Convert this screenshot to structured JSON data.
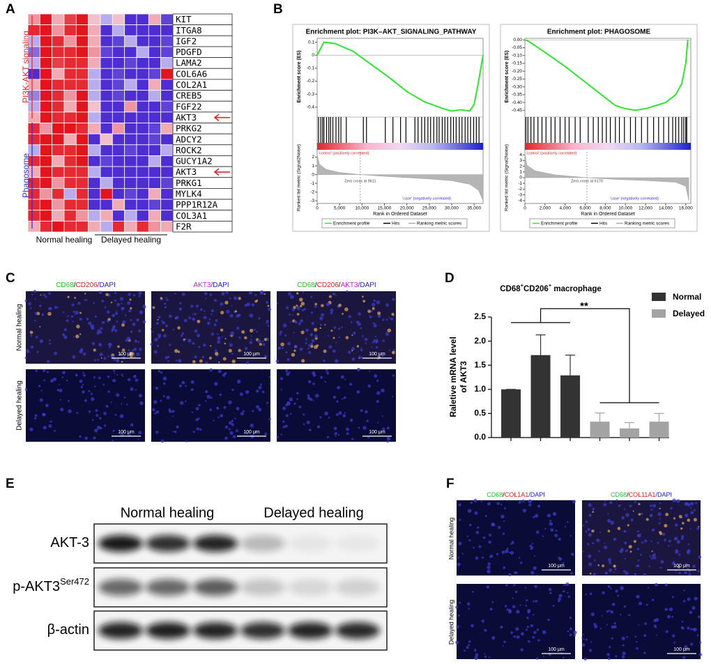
{
  "A": {
    "label": "A",
    "groups": [
      {
        "name": "PI3K-AKT signaling",
        "color": "#e0262b"
      },
      {
        "name": "Phagosome",
        "color": "#2b2bd6"
      }
    ],
    "genes": [
      "KIT",
      "ITGA8",
      "IGF2",
      "PDGFD",
      "LAMA2",
      "COL6A6",
      "COL2A1",
      "CREB5",
      "FGF22",
      "AKT3",
      "PRKG2",
      "ADCY2",
      "ROCK2",
      "GUCY1A2",
      "AKT3",
      "PRKG1",
      "MYLK4",
      "PPP1R12A",
      "COL3A1",
      "F2R"
    ],
    "conditions": [
      "Normal healing",
      "Delayed healing"
    ],
    "heatmap": [
      [
        0.4,
        1,
        0.3,
        0.8,
        1,
        0.2,
        -0.3,
        0.2,
        -0.9,
        -0.9,
        0.3,
        -0.8
      ],
      [
        0.9,
        1,
        0.4,
        0.9,
        1,
        0.3,
        -0.9,
        -0.3,
        -0.9,
        -0.9,
        -0.9,
        -0.9
      ],
      [
        -0.3,
        1,
        0.9,
        0.4,
        1,
        0.3,
        -0.9,
        -0.8,
        -0.3,
        -0.9,
        -0.9,
        -0.8
      ],
      [
        -0.6,
        1,
        0.9,
        0.9,
        1,
        0.4,
        -0.8,
        -0.9,
        -0.9,
        -0.3,
        -0.9,
        -0.8
      ],
      [
        -0.3,
        1,
        0.8,
        0.9,
        0.9,
        0.3,
        -0.9,
        -0.9,
        -0.8,
        -0.9,
        -0.9,
        -0.3
      ],
      [
        -0.9,
        1,
        0.3,
        0.9,
        0.9,
        -0.3,
        -0.9,
        -0.8,
        -0.9,
        -0.9,
        -0.8,
        1
      ],
      [
        0.3,
        1,
        0.9,
        0.9,
        0.9,
        -0.3,
        -0.9,
        -0.8,
        -0.3,
        -0.9,
        0.3,
        -0.9
      ],
      [
        -0.5,
        1,
        0.9,
        0.4,
        1,
        -0.3,
        -0.9,
        -0.8,
        -0.9,
        -0.9,
        -0.3,
        -0.9
      ],
      [
        -0.3,
        1,
        0.9,
        0.3,
        1,
        0.2,
        -0.9,
        -0.9,
        0.4,
        -0.9,
        -0.9,
        -0.8
      ],
      [
        0.3,
        1,
        0.9,
        0.9,
        1,
        -0.3,
        -0.9,
        -0.9,
        -0.9,
        -0.9,
        -0.9,
        -0.9
      ],
      [
        0.9,
        0.4,
        1,
        1,
        0.9,
        0.3,
        -0.9,
        0.4,
        -0.9,
        -0.9,
        -0.8,
        0.3
      ],
      [
        0.9,
        1,
        1,
        0.3,
        1,
        -0.9,
        0.2,
        -0.9,
        -0.9,
        -0.9,
        -0.8,
        -0.9
      ],
      [
        -0.3,
        1,
        0.9,
        0.9,
        1,
        -0.3,
        -0.9,
        -0.9,
        -0.8,
        -0.9,
        -0.9,
        -0.3
      ],
      [
        0.9,
        1,
        0.3,
        0.9,
        1,
        -0.9,
        -0.8,
        -0.9,
        -0.9,
        -0.9,
        -0.3,
        -0.9
      ],
      [
        0.3,
        1,
        0.9,
        0.9,
        0.9,
        -0.3,
        -0.9,
        -0.9,
        -0.9,
        -0.9,
        -0.9,
        -0.9
      ],
      [
        0.9,
        1,
        0.4,
        0.9,
        0.9,
        -0.9,
        -0.3,
        -0.9,
        -0.9,
        -0.9,
        -0.9,
        -0.8
      ],
      [
        0.9,
        0.4,
        0.9,
        -0.3,
        0.9,
        -0.9,
        1,
        -0.9,
        -0.8,
        -0.9,
        0.3,
        -0.9
      ],
      [
        0.9,
        1,
        0.4,
        0.9,
        0.9,
        -0.9,
        -0.9,
        0.3,
        -0.9,
        -0.9,
        -0.8,
        -0.9
      ],
      [
        0.9,
        1,
        0.3,
        0.9,
        0.4,
        -0.3,
        0.3,
        -0.9,
        -0.3,
        -0.9,
        0.3,
        -0.9
      ],
      [
        0.3,
        0.9,
        1,
        0.9,
        0.9,
        0.3,
        -0.3,
        0.9,
        0.3,
        0.9,
        0.4,
        0.3
      ]
    ]
  },
  "B": {
    "label": "B",
    "legend": [
      "Enrichment profile",
      "Hits",
      "Ranking metric scores"
    ],
    "plots": [
      {
        "title": "Enrichment plot: PI3K–AKT_SIGNALING_PATHWAY",
        "es_label": "Enrichment score (ES)",
        "rank_label": "Ranked list metric (Signal2Noise)",
        "x_label": "Rank in Ordered Dataset",
        "control_label": "'control' (positively correlated)",
        "case_label": "'case' (negatively correlated)",
        "zero_cross": 9611,
        "zero_cross_label": "Zero cross at 9611",
        "xlim": [
          0,
          37000
        ],
        "xticks": [
          0,
          {
            "value": 5000,
            "label": "5,000"
          },
          {
            "value": 10000,
            "label": "10,000"
          },
          {
            "value": 15000,
            "label": "15,000"
          },
          {
            "value": 20000,
            "label": "20,000"
          },
          {
            "value": 25000,
            "label": "25,000"
          },
          {
            "value": 30000,
            "label": "30,000"
          },
          {
            "value": 35000,
            "label": "35,000"
          }
        ],
        "ylim": [
          -0.46,
          0.13
        ],
        "yticks": [
          0.1,
          0,
          -0.1,
          -0.2,
          -0.3,
          -0.4
        ],
        "es_x": [
          0,
          1500,
          4000,
          8000,
          12000,
          16000,
          20000,
          24000,
          28000,
          30000,
          32000,
          34000,
          35000,
          36000,
          36600,
          37000
        ],
        "es": [
          0,
          0.1,
          0.09,
          0.03,
          -0.07,
          -0.17,
          -0.28,
          -0.36,
          -0.41,
          -0.43,
          -0.42,
          -0.43,
          -0.38,
          -0.2,
          -0.08,
          0
        ],
        "hits": [
          300,
          800,
          1200,
          1500,
          2100,
          2600,
          3000,
          3500,
          4200,
          4800,
          5300,
          6500,
          10300,
          11000,
          15200,
          16900,
          18600,
          19800,
          21800,
          22500,
          23300,
          24000,
          24700,
          25300,
          26000,
          26700,
          27200,
          27900,
          28500,
          29100,
          29800,
          30400,
          31000,
          31700,
          32300,
          33000,
          33600,
          34200,
          34900,
          35500,
          36100
        ],
        "rank_ylim": [
          -3.3,
          2.6
        ],
        "rank_yticks": [
          2,
          1,
          0,
          -1,
          -2,
          -3
        ],
        "rank_x": [
          0,
          500,
          2000,
          5000,
          9611,
          15000,
          20000,
          25000,
          30000,
          34000,
          36000,
          37000
        ],
        "rank": [
          2.3,
          1.2,
          0.6,
          0.25,
          0,
          -0.2,
          -0.35,
          -0.5,
          -0.7,
          -1.1,
          -1.8,
          -3
        ]
      },
      {
        "title": "Enrichment plot: PHAGOSOME",
        "es_label": "Enrichment score (ES)",
        "rank_label": "Ranked list metric (Signal2Noise)",
        "x_label": "Rank in Ordered Dataset",
        "control_label": "'control' (positively correlated)",
        "case_label": "'case' (negatively correlated)",
        "zero_cross": 6170,
        "zero_cross_label": "Zero cross at 6170",
        "xlim": [
          0,
          16500
        ],
        "xticks": [
          0,
          {
            "value": 2000,
            "label": "2,000"
          },
          {
            "value": 4000,
            "label": "4,000"
          },
          {
            "value": 6000,
            "label": "6,000"
          },
          {
            "value": 8000,
            "label": "8,000"
          },
          {
            "value": 10000,
            "label": "10,000"
          },
          {
            "value": 12000,
            "label": "12,000"
          },
          {
            "value": 14000,
            "label": "14,000"
          },
          {
            "value": 16000,
            "label": "16,000"
          }
        ],
        "ylim": [
          -0.48,
          0.01
        ],
        "yticks": [
          {
            "value": 0,
            "label": "0.00"
          },
          {
            "value": -0.05,
            "label": "-0.05"
          },
          {
            "value": -0.1,
            "label": "-0.10"
          },
          {
            "value": -0.15,
            "label": "-0.15"
          },
          {
            "value": -0.2,
            "label": "-0.20"
          },
          {
            "value": -0.25,
            "label": "-0.25"
          },
          {
            "value": -0.3,
            "label": "-0.30"
          },
          {
            "value": -0.35,
            "label": "-0.35"
          },
          {
            "value": -0.4,
            "label": "-0.40"
          },
          {
            "value": -0.45,
            "label": "-0.45"
          }
        ],
        "es_x": [
          0,
          400,
          2000,
          4000,
          6000,
          8000,
          9000,
          10000,
          11000,
          12000,
          13000,
          14000,
          15000,
          15600,
          16000,
          16200
        ],
        "es": [
          0,
          -0.01,
          -0.08,
          -0.17,
          -0.27,
          -0.37,
          -0.42,
          -0.44,
          -0.45,
          -0.44,
          -0.42,
          -0.4,
          -0.35,
          -0.28,
          -0.15,
          0
        ],
        "hits": [
          100,
          300,
          600,
          900,
          1300,
          1700,
          2100,
          2600,
          3000,
          3500,
          4000,
          4400,
          5000,
          5500,
          6300,
          6800,
          7300,
          7700,
          8100,
          8500,
          9000,
          9400,
          9900,
          10500,
          11000,
          11600,
          12200,
          12800,
          13300,
          13800,
          14300,
          14700,
          15000,
          15300,
          15600,
          15800,
          16000,
          16100
        ],
        "rank_ylim": [
          -4.5,
          4.5
        ],
        "rank_yticks": [
          4,
          3,
          2,
          1,
          0,
          -1,
          -2,
          -3,
          -4
        ],
        "rank_x": [
          0,
          200,
          1000,
          3000,
          6170,
          9000,
          12000,
          15000,
          16000,
          16300
        ],
        "rank": [
          4.2,
          2.2,
          1.2,
          0.5,
          0,
          -0.3,
          -0.5,
          -0.8,
          -1.5,
          -4
        ]
      }
    ]
  },
  "C": {
    "label": "C",
    "scale_bar": "100 μm",
    "rows": [
      "Normal healing",
      "Delayed healing"
    ],
    "columns": [
      [
        {
          "text": "CD68",
          "color": "#1fc41f"
        },
        {
          "text": "/",
          "color": "#000"
        },
        {
          "text": "CD206",
          "color": "#e01b1b"
        },
        {
          "text": "/DAPI",
          "color": "#2222d0"
        }
      ],
      [
        {
          "text": "AKT3",
          "color": "#d21fd2"
        },
        {
          "text": "/DAPI",
          "color": "#2222d0"
        }
      ],
      [
        {
          "text": "CD68",
          "color": "#1fc41f"
        },
        {
          "text": "/",
          "color": "#000"
        },
        {
          "text": "CD206",
          "color": "#e01b1b"
        },
        {
          "text": "/",
          "color": "#000"
        },
        {
          "text": "AKT3",
          "color": "#d21fd2"
        },
        {
          "text": "/DAPI",
          "color": "#2222d0"
        }
      ]
    ]
  },
  "chart_data": {
    "type": "bar",
    "label": "D",
    "title": [
      "CD68",
      "+",
      "CD206",
      "+",
      " macrophage"
    ],
    "y_label": [
      "Raletive mRNA level",
      "of AKT3"
    ],
    "annotation": "**",
    "legend": "right",
    "ylim": [
      0,
      2.5
    ],
    "yticks": [
      {
        "value": 0,
        "label": "0.0"
      },
      {
        "value": 0.5,
        "label": "0.5"
      },
      {
        "value": 1,
        "label": "1.0"
      },
      {
        "value": 1.5,
        "label": "1.5"
      },
      {
        "value": 2,
        "label": "2.0"
      },
      {
        "value": 2.5,
        "label": "2.5"
      }
    ],
    "series": [
      {
        "name": "Normal",
        "color": "#333333",
        "values": [
          1.0,
          1.71,
          1.29
        ],
        "errors": [
          0,
          0.42,
          0.42
        ]
      },
      {
        "name": "Delayed",
        "color": "#a3a3a3",
        "values": [
          0.33,
          0.19,
          0.33
        ],
        "errors": [
          0.18,
          0.12,
          0.17
        ]
      }
    ]
  },
  "E": {
    "label": "E",
    "conditions": [
      "Normal healing",
      "Delayed healing"
    ],
    "rows": [
      [
        {
          "text": "AKT-3"
        }
      ],
      [
        {
          "text": "p-AKT3"
        },
        {
          "text": "Ser472",
          "sup": true
        }
      ],
      [
        {
          "text": "β-actin"
        }
      ]
    ]
  },
  "F": {
    "label": "F",
    "scale_bar": "100 μm",
    "rows": [
      "Normal healing",
      "Delayed healing"
    ],
    "columns": [
      [
        {
          "text": "CD68",
          "color": "#1fc41f"
        },
        {
          "text": "/",
          "color": "#000"
        },
        {
          "text": "COL1A1",
          "color": "#e01b1b"
        },
        {
          "text": "/DAPI",
          "color": "#2222d0"
        }
      ],
      [
        {
          "text": "CD68",
          "color": "#1fc41f"
        },
        {
          "text": "/",
          "color": "#000"
        },
        {
          "text": "COL11A1",
          "color": "#e01b1b"
        },
        {
          "text": "/DAPI",
          "color": "#2222d0"
        }
      ]
    ]
  }
}
